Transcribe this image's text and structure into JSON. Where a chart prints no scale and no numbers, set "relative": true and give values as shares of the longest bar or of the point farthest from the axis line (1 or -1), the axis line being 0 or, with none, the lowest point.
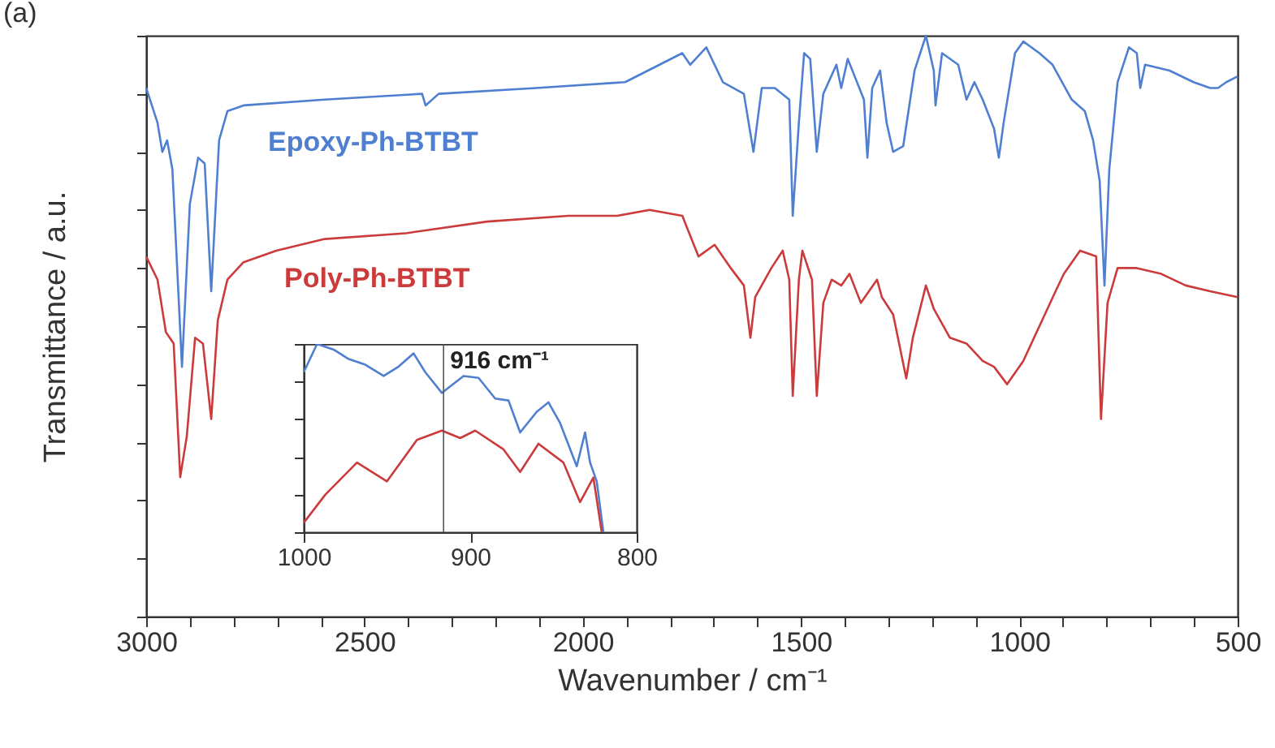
{
  "chart_data": [
    {
      "type": "line",
      "title": "(a)",
      "xlabel": "Wavenumber / cm⁻¹",
      "ylabel": "Transmittance / a.u.",
      "relative": true,
      "grid": false,
      "marker": "none",
      "line_style": "solid",
      "xlim": [
        3000,
        500
      ],
      "xticks": [
        3000,
        {
          "value": 2900,
          "label": null
        },
        {
          "value": 2800,
          "label": null
        },
        {
          "value": 2700,
          "label": null
        },
        {
          "value": 2600,
          "label": null
        },
        2500,
        {
          "value": 2400,
          "label": null
        },
        {
          "value": 2300,
          "label": null
        },
        {
          "value": 2200,
          "label": null
        },
        {
          "value": 2100,
          "label": null
        },
        2000,
        {
          "value": 1900,
          "label": null
        },
        {
          "value": 1800,
          "label": null
        },
        {
          "value": 1700,
          "label": null
        },
        {
          "value": 1600,
          "label": null
        },
        1500,
        {
          "value": 1400,
          "label": null
        },
        {
          "value": 1300,
          "label": null
        },
        {
          "value": 1200,
          "label": null
        },
        {
          "value": 1100,
          "label": null
        },
        1000,
        {
          "value": 900,
          "label": null
        },
        {
          "value": 800,
          "label": null
        },
        {
          "value": 700,
          "label": null
        },
        {
          "value": 600,
          "label": null
        },
        500
      ],
      "series": [
        {
          "name": "Epoxy-Ph-BTBT",
          "color": "#4f7fd0",
          "x": [
            3000,
            2974,
            2963,
            2952,
            2940,
            2918,
            2900,
            2881,
            2866,
            2851,
            2833,
            2814,
            2777,
            2591,
            2368,
            2360,
            2330,
            2107,
            1903,
            1772,
            1754,
            1717,
            1679,
            1631,
            1609,
            1590,
            1560,
            1527,
            1519,
            1505,
            1493,
            1479,
            1464,
            1449,
            1419,
            1408,
            1393,
            1356,
            1348,
            1337,
            1319,
            1304,
            1289,
            1266,
            1240,
            1214,
            1196,
            1192,
            1177,
            1140,
            1121,
            1103,
            1084,
            1058,
            1047,
            1036,
            1010,
            991,
            954,
            924,
            880,
            850,
            831,
            816,
            805,
            794,
            775,
            749,
            731,
            723,
            712,
            656,
            601,
            563,
            545,
            526,
            500
          ],
          "values": [
            0.91,
            0.85,
            0.8,
            0.82,
            0.77,
            0.43,
            0.71,
            0.79,
            0.78,
            0.56,
            0.82,
            0.87,
            0.88,
            0.89,
            0.9,
            0.88,
            0.9,
            0.91,
            0.92,
            0.97,
            0.95,
            0.98,
            0.92,
            0.9,
            0.8,
            0.91,
            0.91,
            0.89,
            0.69,
            0.85,
            0.97,
            0.96,
            0.8,
            0.9,
            0.95,
            0.91,
            0.96,
            0.89,
            0.79,
            0.91,
            0.94,
            0.85,
            0.8,
            0.81,
            0.94,
            1.0,
            0.94,
            0.88,
            0.97,
            0.95,
            0.89,
            0.92,
            0.89,
            0.84,
            0.79,
            0.85,
            0.97,
            0.99,
            0.97,
            0.95,
            0.89,
            0.87,
            0.82,
            0.75,
            0.57,
            0.77,
            0.92,
            0.98,
            0.97,
            0.91,
            0.95,
            0.94,
            0.92,
            0.91,
            0.91,
            0.92,
            0.93
          ]
        },
        {
          "name": "Poly-Ph-BTBT",
          "color": "#cc3b3b",
          "x": [
            3000,
            2974,
            2955,
            2937,
            2922,
            2907,
            2888,
            2870,
            2851,
            2836,
            2814,
            2777,
            2702,
            2591,
            2405,
            2219,
            2033,
            1921,
            1847,
            1772,
            1735,
            1698,
            1661,
            1631,
            1616,
            1605,
            1568,
            1542,
            1527,
            1519,
            1505,
            1497,
            1475,
            1464,
            1449,
            1430,
            1408,
            1389,
            1363,
            1326,
            1315,
            1289,
            1259,
            1244,
            1214,
            1196,
            1159,
            1121,
            1084,
            1058,
            1028,
            991,
            954,
            917,
            898,
            861,
            824,
            813,
            798,
            775,
            731,
            675,
            619,
            563,
            500
          ],
          "values": [
            0.62,
            0.58,
            0.49,
            0.47,
            0.24,
            0.31,
            0.48,
            0.47,
            0.34,
            0.51,
            0.58,
            0.61,
            0.63,
            0.65,
            0.66,
            0.68,
            0.69,
            0.69,
            0.7,
            0.69,
            0.62,
            0.64,
            0.6,
            0.57,
            0.48,
            0.55,
            0.6,
            0.63,
            0.58,
            0.38,
            0.58,
            0.63,
            0.58,
            0.38,
            0.54,
            0.58,
            0.57,
            0.59,
            0.54,
            0.58,
            0.55,
            0.52,
            0.41,
            0.48,
            0.57,
            0.53,
            0.48,
            0.47,
            0.44,
            0.43,
            0.4,
            0.44,
            0.5,
            0.56,
            0.59,
            0.63,
            0.62,
            0.34,
            0.54,
            0.6,
            0.6,
            0.59,
            0.57,
            0.56,
            0.55
          ]
        }
      ]
    },
    {
      "type": "line",
      "relative": true,
      "grid": false,
      "marker": "none",
      "line_style": "solid",
      "tick_labels": "x",
      "xlim": [
        1000,
        800
      ],
      "xticks": [
        1000,
        900,
        800
      ],
      "ref_lines": [
        {
          "axis": "x",
          "value": 916,
          "label": "916 cm⁻¹",
          "color": "#555555"
        }
      ],
      "series": [
        {
          "color": "#4f7fd0",
          "x": [
            1000,
            992,
            982,
            973,
            963,
            952,
            943,
            934,
            927,
            917,
            904,
            895,
            885,
            877,
            870,
            860,
            853,
            846,
            836,
            831,
            828,
            824,
            820
          ],
          "values": [
            0.85,
            1.0,
            0.97,
            0.92,
            0.89,
            0.83,
            0.88,
            0.95,
            0.85,
            0.74,
            0.83,
            0.82,
            0.71,
            0.7,
            0.53,
            0.64,
            0.69,
            0.58,
            0.35,
            0.53,
            0.37,
            0.27,
            0.0
          ]
        },
        {
          "color": "#cc3b3b",
          "x": [
            1000,
            987,
            968,
            950,
            932,
            917,
            906,
            897,
            880,
            870,
            859,
            844,
            834,
            826,
            821
          ],
          "values": [
            0.05,
            0.2,
            0.37,
            0.27,
            0.49,
            0.54,
            0.5,
            0.54,
            0.44,
            0.32,
            0.47,
            0.37,
            0.16,
            0.29,
            0.0
          ]
        }
      ]
    }
  ]
}
